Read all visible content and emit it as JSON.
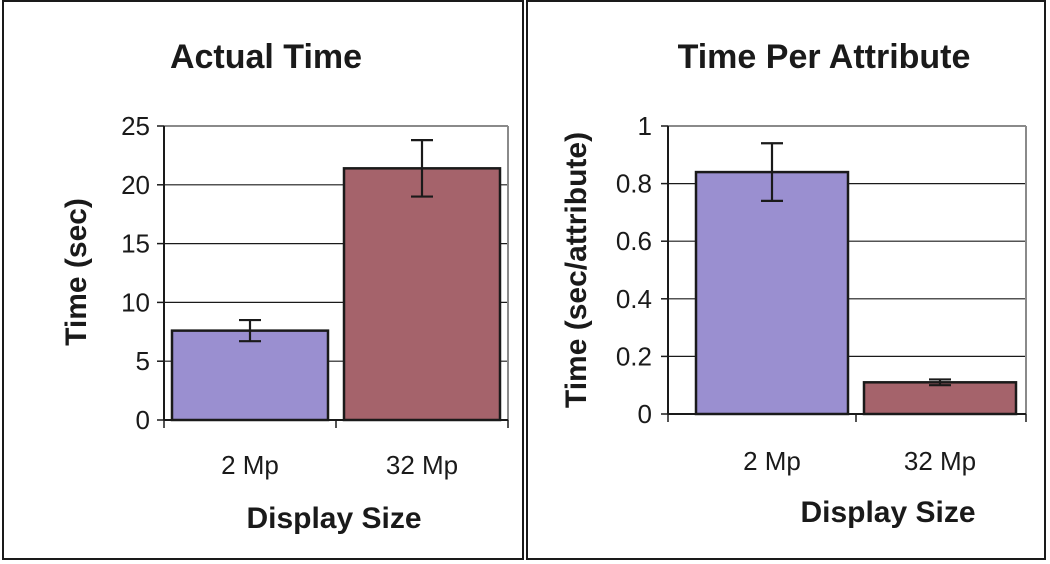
{
  "chart_data": [
    {
      "type": "bar",
      "title": "Actual Time",
      "xlabel": "Display Size",
      "ylabel": "Time (sec)",
      "categories": [
        "2 Mp",
        "32 Mp"
      ],
      "values": [
        7.6,
        21.4
      ],
      "error": [
        0.9,
        2.4
      ],
      "ylim": [
        0,
        25
      ],
      "yticks": [
        "0",
        "5",
        "10",
        "15",
        "20",
        "25"
      ],
      "ytick_values": [
        0,
        5,
        10,
        15,
        20,
        25
      ],
      "bar_colors": [
        "#9a8fd0",
        "#a5636b"
      ],
      "grid": true
    },
    {
      "type": "bar",
      "title": "Time Per Attribute",
      "xlabel": "Display Size",
      "ylabel": "Time (sec/attribute)",
      "categories": [
        "2 Mp",
        "32 Mp"
      ],
      "values": [
        0.84,
        0.11
      ],
      "error": [
        0.1,
        0.01
      ],
      "ylim": [
        0,
        1
      ],
      "yticks": [
        "0",
        "0.2",
        "0.4",
        "0.6",
        "0.8",
        "1"
      ],
      "ytick_values": [
        0,
        0.2,
        0.4,
        0.6,
        0.8,
        1
      ],
      "bar_colors": [
        "#9a8fd0",
        "#a5636b"
      ],
      "grid": true
    }
  ]
}
